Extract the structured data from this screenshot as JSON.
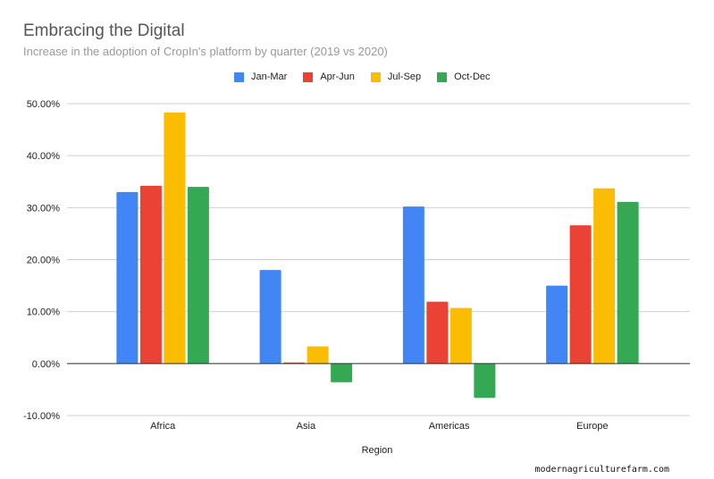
{
  "chart_data": {
    "type": "bar",
    "title": "Embracing the Digital",
    "subtitle": "Increase in the adoption of CropIn's platform by quarter (2019 vs 2020)",
    "xlabel": "Region",
    "ylabel": "",
    "categories": [
      "Africa",
      "Asia",
      "Americas",
      "Europe"
    ],
    "series": [
      {
        "name": "Jan-Mar",
        "color": "#4285f4",
        "values": [
          33.0,
          18.0,
          30.2,
          15.0
        ]
      },
      {
        "name": "Apr-Jun",
        "color": "#ea4335",
        "values": [
          34.2,
          0.2,
          11.9,
          26.6
        ]
      },
      {
        "name": "Jul-Sep",
        "color": "#fbbc04",
        "values": [
          48.3,
          3.3,
          10.7,
          33.7
        ]
      },
      {
        "name": "Oct-Dec",
        "color": "#34a853",
        "values": [
          34.0,
          -3.6,
          -6.6,
          31.1
        ]
      }
    ],
    "ylim": [
      -10,
      50
    ],
    "yticks": [
      -10,
      0,
      10,
      20,
      30,
      40,
      50
    ],
    "ytick_labels": [
      "-10.00%",
      "0.00%",
      "10.00%",
      "20.00%",
      "30.00%",
      "40.00%",
      "50.00%"
    ],
    "grid": true,
    "legend_position": "top"
  },
  "watermark": "modernagriculturefarm.com"
}
